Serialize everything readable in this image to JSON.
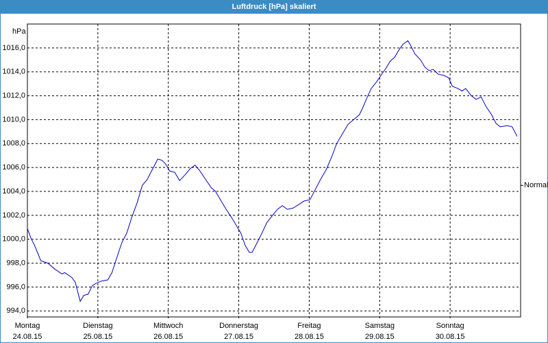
{
  "chart_data": {
    "type": "line",
    "title": "Luftdruck [hPa] skaliert",
    "y_label": "hPa",
    "annotation": {
      "label": "Normal",
      "value": 1004.5
    },
    "xlim": [
      0,
      7
    ],
    "xticks": [
      {
        "value": 0,
        "label": "Montag"
      },
      {
        "value": 1,
        "label": "Dienstag"
      },
      {
        "value": 2,
        "label": "Mittwoch"
      },
      {
        "value": 3,
        "label": "Donnerstag"
      },
      {
        "value": 4,
        "label": "Freitag"
      },
      {
        "value": 5,
        "label": "Samstag"
      },
      {
        "value": 6,
        "label": "Sonntag"
      }
    ],
    "xtick_dates": [
      "24.08.15",
      "25.08.15",
      "26.08.15",
      "27.08.15",
      "28.08.15",
      "29.08.15",
      "30.08.15"
    ],
    "ylim": [
      993.5,
      1018
    ],
    "yticks": [
      {
        "value": 994,
        "label": "994,0"
      },
      {
        "value": 996,
        "label": "996,0"
      },
      {
        "value": 998,
        "label": "998,0"
      },
      {
        "value": 1000,
        "label": "1000,0"
      },
      {
        "value": 1002,
        "label": "1002,0"
      },
      {
        "value": 1004,
        "label": "1004,0"
      },
      {
        "value": 1006,
        "label": "1006,0"
      },
      {
        "value": 1008,
        "label": "1008,0"
      },
      {
        "value": 1010,
        "label": "1010,0"
      },
      {
        "value": 1012,
        "label": "1012,0"
      },
      {
        "value": 1014,
        "label": "1014,0"
      },
      {
        "value": 1016,
        "label": "1016,0"
      }
    ],
    "grid": true,
    "color": "#0000c0",
    "x": [
      0,
      0.05,
      0.1,
      0.15,
      0.19,
      0.29,
      0.39,
      0.49,
      0.53,
      0.63,
      0.68,
      0.75,
      0.8,
      0.86,
      0.92,
      0.97,
      1.05,
      1.14,
      1.2,
      1.26,
      1.34,
      1.41,
      1.48,
      1.56,
      1.63,
      1.7,
      1.77,
      1.85,
      1.91,
      1.96,
      2.02,
      2.09,
      2.16,
      2.24,
      2.31,
      2.38,
      2.45,
      2.53,
      2.61,
      2.67,
      2.74,
      2.82,
      2.9,
      2.97,
      3.03,
      3.09,
      3.15,
      3.19,
      3.26,
      3.32,
      3.4,
      3.48,
      3.55,
      3.62,
      3.69,
      3.77,
      3.85,
      3.93,
      4.01,
      4.08,
      4.16,
      4.24,
      4.32,
      4.39,
      4.47,
      4.55,
      4.63,
      4.71,
      4.76,
      4.81,
      4.88,
      4.96,
      5.04,
      5.09,
      5.15,
      5.21,
      5.27,
      5.33,
      5.4,
      5.44,
      5.5,
      5.58,
      5.64,
      5.7,
      5.76,
      5.83,
      5.91,
      5.98,
      6.03,
      6.11,
      6.17,
      6.22,
      6.3,
      6.37,
      6.44,
      6.51,
      6.59,
      6.65,
      6.71,
      6.81,
      6.88,
      6.95
    ],
    "values": [
      1000.9,
      1000.1,
      999.5,
      998.8,
      998.2,
      998.0,
      997.5,
      997.1,
      997.2,
      996.8,
      996.4,
      994.8,
      995.3,
      995.4,
      996.1,
      996.3,
      996.5,
      996.6,
      997.2,
      998.3,
      999.7,
      1000.5,
      1001.8,
      1003.1,
      1004.5,
      1005.0,
      1005.8,
      1006.7,
      1006.6,
      1006.3,
      1005.7,
      1005.6,
      1004.9,
      1005.4,
      1005.9,
      1006.2,
      1005.7,
      1005.0,
      1004.3,
      1004.0,
      1003.3,
      1002.5,
      1001.8,
      1001.1,
      1000.5,
      999.5,
      998.9,
      998.9,
      999.7,
      1000.4,
      1001.4,
      1002.0,
      1002.5,
      1002.8,
      1002.5,
      1002.6,
      1002.9,
      1003.2,
      1003.3,
      1004.1,
      1005.0,
      1005.8,
      1006.9,
      1008.0,
      1008.8,
      1009.6,
      1010.0,
      1010.4,
      1011.0,
      1011.7,
      1012.6,
      1013.2,
      1013.9,
      1014.3,
      1014.9,
      1015.2,
      1015.8,
      1016.3,
      1016.6,
      1016.2,
      1015.5,
      1015.0,
      1014.4,
      1014.1,
      1014.2,
      1013.8,
      1013.7,
      1013.5,
      1012.8,
      1012.6,
      1012.4,
      1012.6,
      1012.0,
      1011.7,
      1011.9,
      1011.1,
      1010.4,
      1009.7,
      1009.4,
      1009.5,
      1009.4,
      1008.6
    ]
  }
}
